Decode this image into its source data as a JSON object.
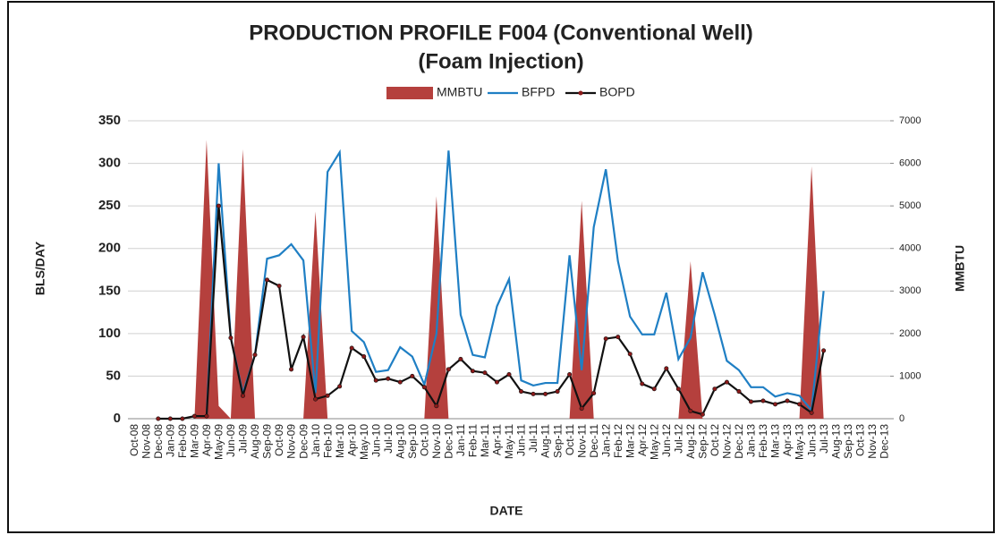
{
  "chart_data": {
    "type": "combo",
    "title": [
      "PRODUCTION PROFILE F004 (Conventional  Well)",
      "(Foam Injection)"
    ],
    "x_label": "DATE",
    "y_label": "BLS/DAY",
    "y2_label": "MMBTU",
    "categories": [
      "Oct-08",
      "Nov-08",
      "Dec-08",
      "Jan-09",
      "Feb-09",
      "Mar-09",
      "Apr-09",
      "May-09",
      "Jun-09",
      "Jul-09",
      "Aug-09",
      "Sep-09",
      "Oct-09",
      "Nov-09",
      "Dec-09",
      "Jan-10",
      "Feb-10",
      "Mar-10",
      "Apr-10",
      "May-10",
      "Jun-10",
      "Jul-10",
      "Aug-10",
      "Sep-10",
      "Oct-10",
      "Nov-10",
      "Dec-10",
      "Jan-11",
      "Feb-11",
      "Mar-11",
      "Apr-11",
      "May-11",
      "Jun-11",
      "Jul-11",
      "Aug-11",
      "Sep-11",
      "Oct-11",
      "Nov-11",
      "Dec-11",
      "Jan-12",
      "Feb-12",
      "Mar-12",
      "Apr-12",
      "May-12",
      "Jun-12",
      "Jul-12",
      "Aug-12",
      "Sep-12",
      "Oct-12",
      "Nov-12",
      "Dec-12",
      "Jan-13",
      "Feb-13",
      "Mar-13",
      "Apr-13",
      "May-13",
      "Jun-13",
      "Jul-13",
      "Aug-13",
      "Sep-13",
      "Oct-13",
      "Nov-13",
      "Dec-13"
    ],
    "series": [
      {
        "name": "MMBTU",
        "type": "area",
        "axis": "y2",
        "color": "#b5403d",
        "values": [
          null,
          null,
          0,
          0,
          0,
          0,
          6550,
          300,
          0,
          6330,
          0,
          0,
          0,
          0,
          0,
          4870,
          0,
          0,
          0,
          0,
          0,
          0,
          0,
          0,
          0,
          5230,
          0,
          0,
          0,
          0,
          0,
          0,
          0,
          0,
          0,
          0,
          0,
          5120,
          0,
          0,
          0,
          0,
          0,
          0,
          0,
          0,
          3700,
          0,
          0,
          0,
          0,
          0,
          0,
          0,
          0,
          0,
          5930,
          0,
          null,
          null,
          null,
          null,
          null
        ]
      },
      {
        "name": "BFPD",
        "type": "line",
        "color": "#1f7fc4",
        "values": [
          null,
          null,
          null,
          null,
          null,
          null,
          3,
          300,
          95,
          30,
          75,
          188,
          192,
          205,
          186,
          30,
          290,
          313,
          103,
          90,
          55,
          57,
          84,
          73,
          40,
          100,
          315,
          122,
          75,
          72,
          132,
          164,
          45,
          39,
          42,
          42,
          192,
          57,
          225,
          293,
          185,
          120,
          99,
          99,
          148,
          70,
          95,
          172,
          122,
          68,
          57,
          37,
          37,
          26,
          30,
          27,
          10,
          150,
          null,
          null,
          null,
          null,
          null
        ]
      },
      {
        "name": "BOPD",
        "type": "line",
        "marker": true,
        "marker_color": "#8b1a1a",
        "color": "#111111",
        "values": [
          null,
          null,
          0,
          0,
          0,
          3,
          3,
          250,
          95,
          27,
          75,
          163,
          156,
          58,
          96,
          23,
          27,
          38,
          83,
          73,
          45,
          47,
          43,
          50,
          37,
          15,
          58,
          70,
          56,
          54,
          43,
          52,
          32,
          29,
          29,
          32,
          52,
          12,
          30,
          94,
          96,
          76,
          41,
          35,
          59,
          35,
          9,
          5,
          35,
          43,
          32,
          20,
          21,
          17,
          21,
          17,
          7,
          80,
          null,
          null,
          null,
          null,
          null
        ]
      }
    ],
    "ylim": [
      0,
      350
    ],
    "yticks": [
      0,
      50,
      100,
      150,
      200,
      250,
      300,
      350
    ],
    "y2lim": [
      0,
      7000
    ],
    "y2ticks": [
      0,
      1000,
      2000,
      3000,
      4000,
      5000,
      6000,
      7000
    ],
    "grid": true,
    "legend": "top"
  }
}
